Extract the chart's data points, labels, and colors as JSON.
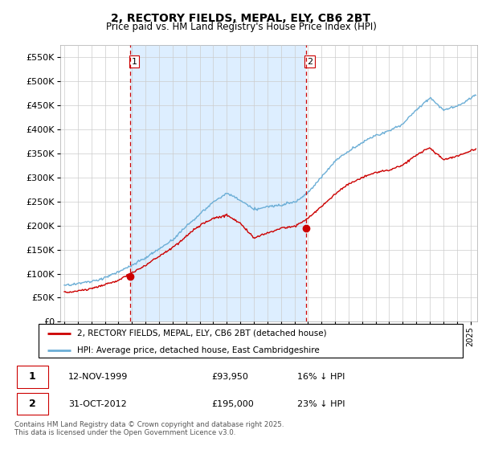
{
  "title_line1": "2, RECTORY FIELDS, MEPAL, ELY, CB6 2BT",
  "title_line2": "Price paid vs. HM Land Registry's House Price Index (HPI)",
  "ytick_values": [
    0,
    50000,
    100000,
    150000,
    200000,
    250000,
    300000,
    350000,
    400000,
    450000,
    500000,
    550000
  ],
  "ylim": [
    0,
    575000
  ],
  "hpi_color": "#6baed6",
  "price_color": "#cc0000",
  "vline_color": "#cc0000",
  "shade_color": "#ddeeff",
  "grid_color": "#cccccc",
  "background_color": "#ffffff",
  "legend_label_red": "2, RECTORY FIELDS, MEPAL, ELY, CB6 2BT (detached house)",
  "legend_label_blue": "HPI: Average price, detached house, East Cambridgeshire",
  "purchase1_label": "1",
  "purchase1_date": "12-NOV-1999",
  "purchase1_price": "£93,950",
  "purchase1_hpi": "16% ↓ HPI",
  "purchase2_label": "2",
  "purchase2_date": "31-OCT-2012",
  "purchase2_price": "£195,000",
  "purchase2_hpi": "23% ↓ HPI",
  "footer_text": "Contains HM Land Registry data © Crown copyright and database right 2025.\nThis data is licensed under the Open Government Licence v3.0.",
  "purchase1_year": 1999.87,
  "purchase1_value": 93950,
  "purchase2_year": 2012.83,
  "purchase2_value": 195000,
  "xmin": 1994.7,
  "xmax": 2025.5
}
